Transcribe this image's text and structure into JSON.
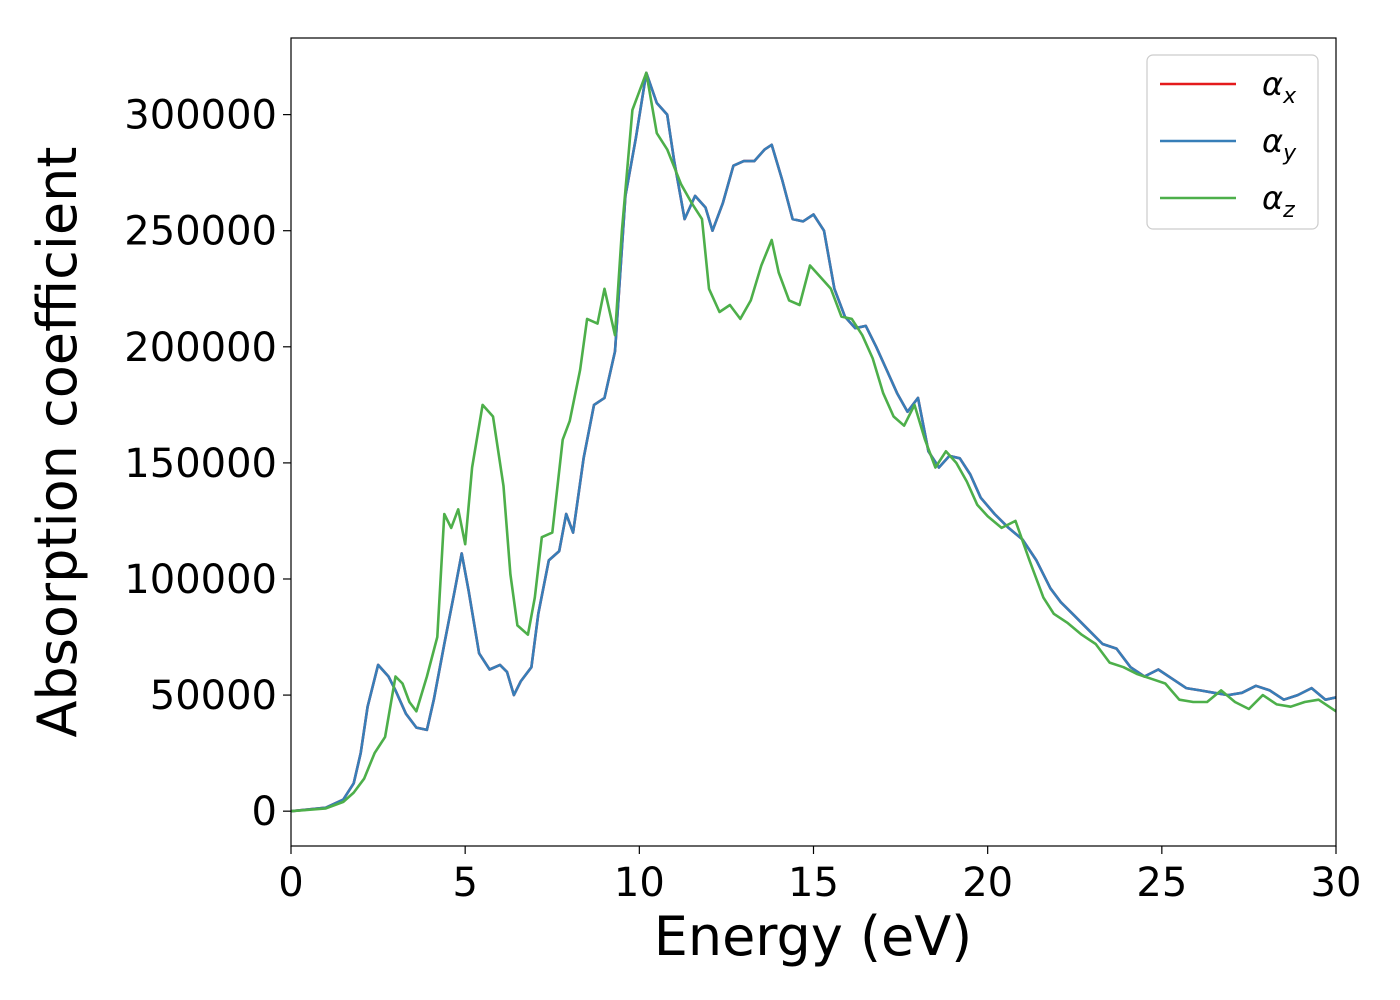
{
  "chart_data": {
    "type": "line",
    "xlabel": "Energy (eV)",
    "ylabel": "Absorption coefficient",
    "xlim": [
      0,
      30
    ],
    "ylim": [
      -15000,
      333000
    ],
    "x_ticks": [
      0,
      5,
      10,
      15,
      20,
      25,
      30
    ],
    "y_ticks": [
      0,
      50000,
      100000,
      150000,
      200000,
      250000,
      300000
    ],
    "x_tick_labels": [
      "0",
      "5",
      "10",
      "15",
      "20",
      "25",
      "30"
    ],
    "y_tick_labels": [
      "0",
      "50000",
      "100000",
      "150000",
      "200000",
      "250000",
      "300000"
    ],
    "grid": false,
    "legend_position": "top-right",
    "series": [
      {
        "name": "αx",
        "symbol": "α",
        "subscript": "x",
        "color": "#e41a1c",
        "x": [
          0,
          1,
          1.5,
          1.8,
          2.0,
          2.2,
          2.5,
          2.8,
          3.0,
          3.3,
          3.6,
          3.9,
          4.1,
          4.4,
          4.7,
          4.9,
          5.1,
          5.4,
          5.7,
          6.0,
          6.2,
          6.4,
          6.6,
          6.9,
          7.1,
          7.4,
          7.7,
          7.9,
          8.1,
          8.4,
          8.7,
          9.0,
          9.3,
          9.6,
          9.9,
          10.2,
          10.5,
          10.8,
          11.0,
          11.3,
          11.6,
          11.9,
          12.1,
          12.4,
          12.7,
          13.0,
          13.3,
          13.6,
          13.8,
          14.1,
          14.4,
          14.7,
          15.0,
          15.3,
          15.6,
          15.9,
          16.2,
          16.5,
          16.8,
          17.1,
          17.4,
          17.7,
          18.0,
          18.3,
          18.6,
          18.9,
          19.2,
          19.5,
          19.8,
          20.2,
          20.6,
          21.0,
          21.4,
          21.8,
          22.1,
          22.5,
          22.9,
          23.3,
          23.7,
          24.1,
          24.5,
          24.9,
          25.3,
          25.7,
          26.1,
          26.5,
          26.9,
          27.3,
          27.7,
          28.1,
          28.5,
          28.9,
          29.3,
          29.7,
          30
        ],
        "y": [
          0,
          1500,
          5000,
          12000,
          25000,
          45000,
          63000,
          58000,
          52000,
          42000,
          36000,
          35000,
          48000,
          72000,
          95000,
          111000,
          95000,
          68000,
          61000,
          63000,
          60000,
          50000,
          56000,
          62000,
          85000,
          108000,
          112000,
          128000,
          120000,
          152000,
          175000,
          178000,
          198000,
          265000,
          290000,
          318000,
          305000,
          300000,
          280000,
          255000,
          265000,
          260000,
          250000,
          262000,
          278000,
          280000,
          280000,
          285000,
          287000,
          272000,
          255000,
          254000,
          257000,
          250000,
          225000,
          213000,
          208000,
          209000,
          200000,
          190000,
          180000,
          172000,
          178000,
          155000,
          148000,
          153000,
          152000,
          145000,
          135000,
          128000,
          122000,
          117000,
          108000,
          96000,
          90000,
          84000,
          78000,
          72000,
          70000,
          62000,
          58000,
          61000,
          57000,
          53000,
          52000,
          51000,
          50000,
          51000,
          54000,
          52000,
          48000,
          50000,
          53000,
          48000,
          49000
        ]
      },
      {
        "name": "αy",
        "symbol": "α",
        "subscript": "y",
        "color": "#377eb8",
        "x": [
          0,
          1,
          1.5,
          1.8,
          2.0,
          2.2,
          2.5,
          2.8,
          3.0,
          3.3,
          3.6,
          3.9,
          4.1,
          4.4,
          4.7,
          4.9,
          5.1,
          5.4,
          5.7,
          6.0,
          6.2,
          6.4,
          6.6,
          6.9,
          7.1,
          7.4,
          7.7,
          7.9,
          8.1,
          8.4,
          8.7,
          9.0,
          9.3,
          9.6,
          9.9,
          10.2,
          10.5,
          10.8,
          11.0,
          11.3,
          11.6,
          11.9,
          12.1,
          12.4,
          12.7,
          13.0,
          13.3,
          13.6,
          13.8,
          14.1,
          14.4,
          14.7,
          15.0,
          15.3,
          15.6,
          15.9,
          16.2,
          16.5,
          16.8,
          17.1,
          17.4,
          17.7,
          18.0,
          18.3,
          18.6,
          18.9,
          19.2,
          19.5,
          19.8,
          20.2,
          20.6,
          21.0,
          21.4,
          21.8,
          22.1,
          22.5,
          22.9,
          23.3,
          23.7,
          24.1,
          24.5,
          24.9,
          25.3,
          25.7,
          26.1,
          26.5,
          26.9,
          27.3,
          27.7,
          28.1,
          28.5,
          28.9,
          29.3,
          29.7,
          30
        ],
        "y": [
          0,
          1500,
          5000,
          12000,
          25000,
          45000,
          63000,
          58000,
          52000,
          42000,
          36000,
          35000,
          48000,
          72000,
          95000,
          111000,
          95000,
          68000,
          61000,
          63000,
          60000,
          50000,
          56000,
          62000,
          85000,
          108000,
          112000,
          128000,
          120000,
          152000,
          175000,
          178000,
          198000,
          265000,
          290000,
          318000,
          305000,
          300000,
          280000,
          255000,
          265000,
          260000,
          250000,
          262000,
          278000,
          280000,
          280000,
          285000,
          287000,
          272000,
          255000,
          254000,
          257000,
          250000,
          225000,
          213000,
          208000,
          209000,
          200000,
          190000,
          180000,
          172000,
          178000,
          155000,
          148000,
          153000,
          152000,
          145000,
          135000,
          128000,
          122000,
          117000,
          108000,
          96000,
          90000,
          84000,
          78000,
          72000,
          70000,
          62000,
          58000,
          61000,
          57000,
          53000,
          52000,
          51000,
          50000,
          51000,
          54000,
          52000,
          48000,
          50000,
          53000,
          48000,
          49000
        ]
      },
      {
        "name": "αz",
        "symbol": "α",
        "subscript": "z",
        "color": "#4daf4a",
        "x": [
          0,
          1,
          1.5,
          1.8,
          2.1,
          2.4,
          2.7,
          3.0,
          3.2,
          3.4,
          3.6,
          3.9,
          4.2,
          4.4,
          4.6,
          4.8,
          5.0,
          5.2,
          5.5,
          5.8,
          6.1,
          6.3,
          6.5,
          6.8,
          7.0,
          7.2,
          7.5,
          7.8,
          8.0,
          8.3,
          8.5,
          8.8,
          9.0,
          9.3,
          9.5,
          9.8,
          10.2,
          10.5,
          10.8,
          11.2,
          11.5,
          11.8,
          12.0,
          12.3,
          12.6,
          12.9,
          13.2,
          13.5,
          13.8,
          14.0,
          14.3,
          14.6,
          14.9,
          15.2,
          15.5,
          15.8,
          16.1,
          16.4,
          16.7,
          17.0,
          17.3,
          17.6,
          17.9,
          18.2,
          18.5,
          18.8,
          19.1,
          19.4,
          19.7,
          20.0,
          20.4,
          20.8,
          21.2,
          21.6,
          21.9,
          22.3,
          22.7,
          23.1,
          23.5,
          23.9,
          24.3,
          24.7,
          25.1,
          25.5,
          25.9,
          26.3,
          26.7,
          27.1,
          27.5,
          27.9,
          28.3,
          28.7,
          29.1,
          29.5,
          30
        ],
        "y": [
          0,
          1200,
          4000,
          8000,
          14000,
          25000,
          32000,
          58000,
          55000,
          47000,
          43000,
          58000,
          75000,
          128000,
          122000,
          130000,
          115000,
          148000,
          175000,
          170000,
          140000,
          102000,
          80000,
          76000,
          92000,
          118000,
          120000,
          160000,
          168000,
          190000,
          212000,
          210000,
          225000,
          205000,
          250000,
          302000,
          318000,
          292000,
          285000,
          270000,
          262000,
          255000,
          225000,
          215000,
          218000,
          212000,
          220000,
          235000,
          246000,
          232000,
          220000,
          218000,
          235000,
          230000,
          225000,
          213000,
          212000,
          205000,
          195000,
          180000,
          170000,
          166000,
          175000,
          160000,
          148000,
          155000,
          150000,
          142000,
          132000,
          127000,
          122000,
          125000,
          108000,
          92000,
          85000,
          81000,
          76000,
          72000,
          64000,
          62000,
          59000,
          57000,
          55000,
          48000,
          47000,
          47000,
          52000,
          47000,
          44000,
          50000,
          46000,
          45000,
          47000,
          48000,
          43000
        ]
      }
    ]
  }
}
